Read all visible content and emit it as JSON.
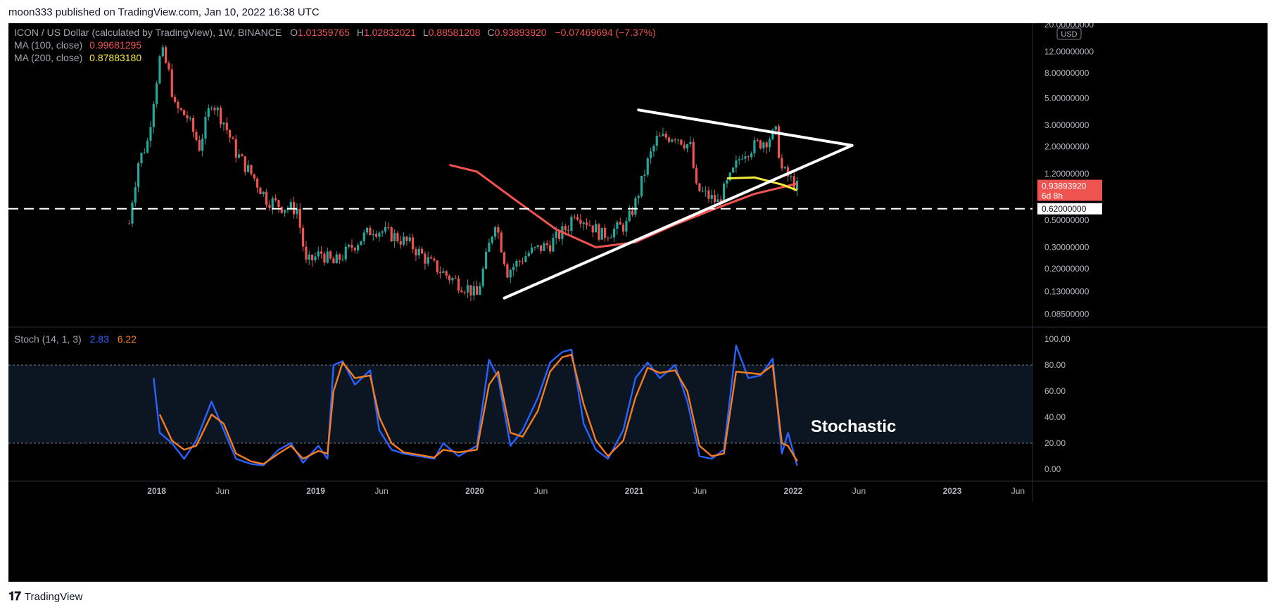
{
  "header": {
    "published": "moon333 published on TradingView.com, Jan 10, 2022 16:38 UTC"
  },
  "footer": {
    "brand": "TradingView"
  },
  "legend": {
    "title": "ICON / US Dollar (calculated by TradingView), 1W, BINANCE",
    "ohlc": [
      {
        "k": "O",
        "v": "1.01359765"
      },
      {
        "k": "H",
        "v": "1.02832021"
      },
      {
        "k": "L",
        "v": "0.88581208"
      },
      {
        "k": "C",
        "v": "0.93893920"
      }
    ],
    "change": "−0.07469694 (−7.37%)",
    "ma100_label": "MA (100, close)",
    "ma100_value": "0.99681295",
    "ma200_label": "MA (200, close)",
    "ma200_value": "0.87883180",
    "stoch_label": "Stoch (14, 1, 3)",
    "stoch_k": "2.83",
    "stoch_d": "6.22"
  },
  "colors": {
    "up": "#26a69a",
    "down": "#ef5350",
    "ma100": "#ef5350",
    "ma200": "#f5eb3b",
    "k": "#2962ff",
    "d": "#f57c1f",
    "trendline": "#ffffff"
  },
  "annotation": {
    "stochastic": "Stochastic"
  },
  "chart_data": [
    {
      "type": "candlestick",
      "title": "ICON / US Dollar",
      "scale": "log",
      "price_axis": [
        "20.00000000",
        "12.00000000",
        "8.00000000",
        "5.00000000",
        "3.00000000",
        "2.00000000",
        "1.20000000",
        "0.50000000",
        "0.30000000",
        "0.20000000",
        "0.13000000",
        "0.08500000"
      ],
      "price_values": [
        20,
        12,
        8,
        5,
        3,
        2,
        1.2,
        0.5,
        0.3,
        0.2,
        0.13,
        0.085
      ],
      "currency_badge": "USD",
      "current_price": {
        "value": 0.9389392,
        "label": "0.93893920",
        "countdown": "6d 8h"
      },
      "horizontal_level": {
        "value": 0.62,
        "label": "0.62000000"
      },
      "time_axis": [
        "2018",
        "Jun",
        "2019",
        "Jun",
        "2020",
        "Jun",
        "2021",
        "Jun",
        "2022",
        "Jun",
        "2023",
        "Jun"
      ],
      "time_values": [
        "2018-01",
        "2018-06",
        "2019-01",
        "2019-06",
        "2020-01",
        "2020-06",
        "2021-01",
        "2021-06",
        "2022-01",
        "2022-06",
        "2023-01",
        "2023-06"
      ],
      "ylim": [
        0.07,
        22
      ],
      "price_path": [
        [
          "2017-10-30",
          0.47
        ],
        [
          "2017-11-06",
          0.75
        ],
        [
          "2017-11-20",
          1.5
        ],
        [
          "2017-12-11",
          2.2
        ],
        [
          "2017-12-25",
          5.0
        ],
        [
          "2018-01-08",
          10.5
        ],
        [
          "2018-01-15",
          11.5
        ],
        [
          "2018-01-29",
          8.0
        ],
        [
          "2018-02-12",
          4.2
        ],
        [
          "2018-03-12",
          3.5
        ],
        [
          "2018-04-09",
          2.0
        ],
        [
          "2018-05-07",
          4.8
        ],
        [
          "2018-06-04",
          3.2
        ],
        [
          "2018-07-02",
          1.8
        ],
        [
          "2018-08-13",
          1.1
        ],
        [
          "2018-09-10",
          0.75
        ],
        [
          "2018-10-15",
          0.65
        ],
        [
          "2018-11-19",
          0.62
        ],
        [
          "2018-12-10",
          0.22
        ],
        [
          "2019-01-14",
          0.27
        ],
        [
          "2019-02-11",
          0.22
        ],
        [
          "2019-04-01",
          0.32
        ],
        [
          "2019-05-13",
          0.43
        ],
        [
          "2019-06-24",
          0.38
        ],
        [
          "2019-08-05",
          0.32
        ],
        [
          "2019-09-23",
          0.22
        ],
        [
          "2019-11-04",
          0.17
        ],
        [
          "2019-12-16",
          0.14
        ],
        [
          "2020-01-06",
          0.12
        ],
        [
          "2020-02-17",
          0.5
        ],
        [
          "2020-03-16",
          0.19
        ],
        [
          "2020-05-04",
          0.27
        ],
        [
          "2020-06-22",
          0.32
        ],
        [
          "2020-08-03",
          0.45
        ],
        [
          "2020-08-17",
          0.6
        ],
        [
          "2020-10-19",
          0.38
        ],
        [
          "2020-12-14",
          0.46
        ],
        [
          "2021-01-04",
          0.7
        ],
        [
          "2021-02-01",
          1.5
        ],
        [
          "2021-02-22",
          2.3
        ],
        [
          "2021-04-05",
          2.5
        ],
        [
          "2021-05-10",
          2.0
        ],
        [
          "2021-05-24",
          0.9
        ],
        [
          "2021-07-12",
          0.7
        ],
        [
          "2021-08-09",
          1.1
        ],
        [
          "2021-09-06",
          1.8
        ],
        [
          "2021-11-01",
          2.3
        ],
        [
          "2021-11-22",
          2.6
        ],
        [
          "2021-12-06",
          1.3
        ],
        [
          "2022-01-10",
          0.9389
        ]
      ],
      "ma100": [
        [
          "2019-11-04",
          1.42
        ],
        [
          "2020-01-06",
          1.25
        ],
        [
          "2020-04-06",
          0.72
        ],
        [
          "2020-07-06",
          0.42
        ],
        [
          "2020-10-05",
          0.3
        ],
        [
          "2021-01-04",
          0.33
        ],
        [
          "2021-04-05",
          0.46
        ],
        [
          "2021-07-05",
          0.62
        ],
        [
          "2021-10-04",
          0.82
        ],
        [
          "2022-01-10",
          0.9968
        ]
      ],
      "ma200": [
        [
          "2021-08-02",
          1.1
        ],
        [
          "2021-10-04",
          1.12
        ],
        [
          "2021-12-06",
          0.98
        ],
        [
          "2022-01-10",
          0.8788
        ]
      ],
      "trendlines": [
        {
          "from": [
            "2020-03-09",
            0.115
          ],
          "to": [
            "2022-05-16",
            2.05
          ]
        },
        {
          "from": [
            "2021-01-11",
            4.0
          ],
          "to": [
            "2022-05-16",
            2.05
          ]
        }
      ]
    },
    {
      "type": "line",
      "title": "Stoch (14, 1, 3)",
      "ylim": [
        0,
        100
      ],
      "y_axis": [
        "100.00",
        "80.00",
        "60.00",
        "40.00",
        "20.00",
        "0.00"
      ],
      "y_values": [
        100,
        80,
        60,
        40,
        20,
        0
      ],
      "bands": [
        20,
        80
      ],
      "series": [
        {
          "name": "%K",
          "points": [
            [
              "2017-12-25",
              70
            ],
            [
              "2018-01-08",
              28
            ],
            [
              "2018-02-05",
              20
            ],
            [
              "2018-03-05",
              8
            ],
            [
              "2018-04-02",
              22
            ],
            [
              "2018-05-07",
              52
            ],
            [
              "2018-06-04",
              30
            ],
            [
              "2018-07-02",
              8
            ],
            [
              "2018-08-06",
              4
            ],
            [
              "2018-09-03",
              3
            ],
            [
              "2018-10-08",
              15
            ],
            [
              "2018-11-05",
              20
            ],
            [
              "2018-12-03",
              5
            ],
            [
              "2019-01-07",
              18
            ],
            [
              "2019-01-28",
              8
            ],
            [
              "2019-02-11",
              80
            ],
            [
              "2019-03-04",
              83
            ],
            [
              "2019-04-01",
              65
            ],
            [
              "2019-05-06",
              76
            ],
            [
              "2019-05-27",
              30
            ],
            [
              "2019-06-24",
              15
            ],
            [
              "2019-07-22",
              12
            ],
            [
              "2019-08-26",
              10
            ],
            [
              "2019-09-30",
              8
            ],
            [
              "2019-10-21",
              20
            ],
            [
              "2019-11-25",
              10
            ],
            [
              "2020-01-06",
              18
            ],
            [
              "2020-02-03",
              84
            ],
            [
              "2020-02-24",
              70
            ],
            [
              "2020-03-23",
              18
            ],
            [
              "2020-04-20",
              30
            ],
            [
              "2020-05-25",
              55
            ],
            [
              "2020-06-22",
              82
            ],
            [
              "2020-07-20",
              90
            ],
            [
              "2020-08-10",
              92
            ],
            [
              "2020-09-07",
              35
            ],
            [
              "2020-10-05",
              15
            ],
            [
              "2020-11-02",
              8
            ],
            [
              "2020-12-07",
              30
            ],
            [
              "2021-01-04",
              70
            ],
            [
              "2021-02-01",
              82
            ],
            [
              "2021-03-01",
              70
            ],
            [
              "2021-04-05",
              80
            ],
            [
              "2021-05-03",
              52
            ],
            [
              "2021-05-31",
              10
            ],
            [
              "2021-06-28",
              8
            ],
            [
              "2021-07-26",
              15
            ],
            [
              "2021-08-23",
              95
            ],
            [
              "2021-09-20",
              70
            ],
            [
              "2021-10-18",
              72
            ],
            [
              "2021-11-15",
              85
            ],
            [
              "2021-12-06",
              12
            ],
            [
              "2021-12-20",
              28
            ],
            [
              "2022-01-10",
              2.83
            ]
          ]
        },
        {
          "name": "%D",
          "points": [
            [
              "2018-01-08",
              42
            ],
            [
              "2018-02-05",
              22
            ],
            [
              "2018-03-05",
              15
            ],
            [
              "2018-04-02",
              18
            ],
            [
              "2018-05-07",
              42
            ],
            [
              "2018-06-04",
              35
            ],
            [
              "2018-07-02",
              12
            ],
            [
              "2018-08-06",
              6
            ],
            [
              "2018-09-03",
              4
            ],
            [
              "2018-10-08",
              12
            ],
            [
              "2018-11-05",
              18
            ],
            [
              "2018-12-03",
              8
            ],
            [
              "2019-01-07",
              14
            ],
            [
              "2019-01-28",
              12
            ],
            [
              "2019-02-11",
              60
            ],
            [
              "2019-03-04",
              82
            ],
            [
              "2019-04-01",
              70
            ],
            [
              "2019-05-06",
              72
            ],
            [
              "2019-05-27",
              40
            ],
            [
              "2019-06-24",
              20
            ],
            [
              "2019-07-22",
              13
            ],
            [
              "2019-08-26",
              11
            ],
            [
              "2019-09-30",
              9
            ],
            [
              "2019-10-21",
              15
            ],
            [
              "2019-11-25",
              13
            ],
            [
              "2020-01-06",
              15
            ],
            [
              "2020-02-03",
              65
            ],
            [
              "2020-02-24",
              75
            ],
            [
              "2020-03-23",
              28
            ],
            [
              "2020-04-20",
              25
            ],
            [
              "2020-05-25",
              45
            ],
            [
              "2020-06-22",
              75
            ],
            [
              "2020-07-20",
              86
            ],
            [
              "2020-08-10",
              88
            ],
            [
              "2020-09-07",
              50
            ],
            [
              "2020-10-05",
              22
            ],
            [
              "2020-11-02",
              10
            ],
            [
              "2020-12-07",
              22
            ],
            [
              "2021-01-04",
              55
            ],
            [
              "2021-02-01",
              78
            ],
            [
              "2021-03-01",
              74
            ],
            [
              "2021-04-05",
              76
            ],
            [
              "2021-05-03",
              60
            ],
            [
              "2021-05-31",
              18
            ],
            [
              "2021-06-28",
              10
            ],
            [
              "2021-07-26",
              12
            ],
            [
              "2021-08-23",
              75
            ],
            [
              "2021-09-20",
              74
            ],
            [
              "2021-10-18",
              73
            ],
            [
              "2021-11-15",
              80
            ],
            [
              "2021-12-06",
              20
            ],
            [
              "2021-12-20",
              18
            ],
            [
              "2022-01-10",
              6.22
            ]
          ]
        }
      ]
    }
  ]
}
